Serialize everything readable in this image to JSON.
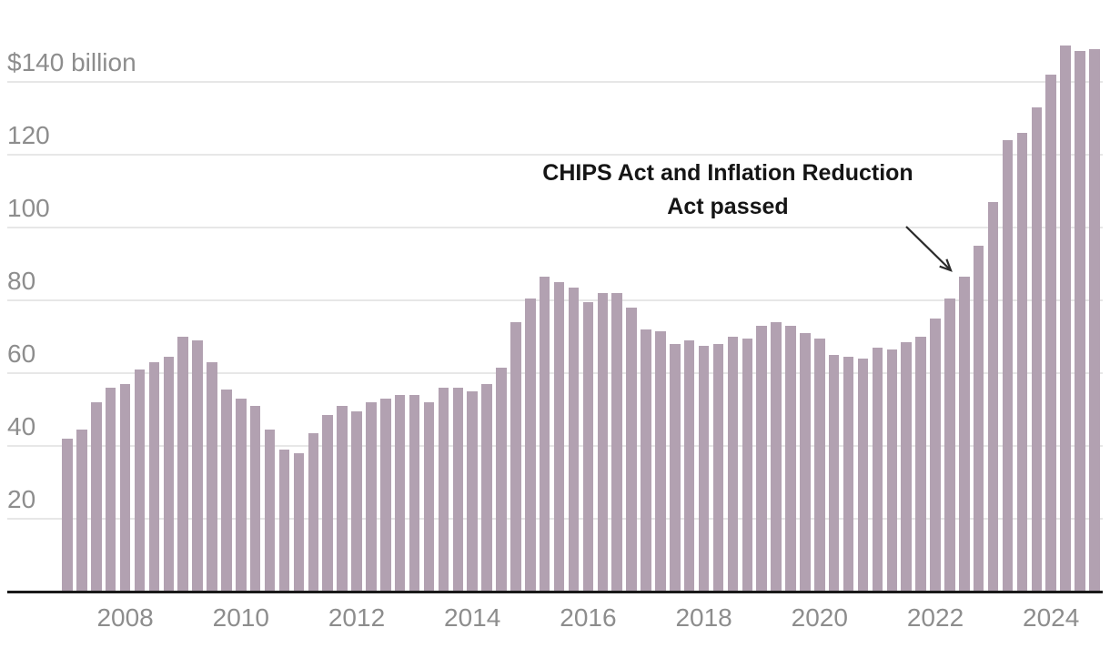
{
  "chart_data": {
    "type": "bar",
    "x_unit": "quarterly",
    "x_start": "2007 Q1",
    "x_end": "2024 Q4",
    "values": [
      42,
      44.5,
      52,
      56,
      57,
      61,
      63,
      64.5,
      70,
      69,
      63,
      55.5,
      53,
      51,
      44.5,
      39,
      38,
      43.5,
      48.5,
      51,
      49.5,
      52,
      53,
      54,
      54,
      52,
      56,
      56,
      55,
      57,
      61.5,
      74,
      80.5,
      86.5,
      85,
      83.5,
      79.5,
      82,
      82,
      78,
      72,
      71.5,
      68,
      69,
      67.5,
      68,
      70,
      69.5,
      73,
      74,
      73,
      71,
      69.5,
      65,
      64.5,
      64,
      67,
      66.5,
      68.5,
      70,
      75,
      80.5,
      86.5,
      95,
      107,
      124,
      126,
      133,
      142,
      150,
      148.5,
      149
    ],
    "ylim": [
      0,
      152
    ],
    "grid": "horizontal",
    "legend": "none",
    "y_ticks": [
      {
        "value": 140,
        "label": "$140 billion"
      },
      {
        "value": 120,
        "label": "120"
      },
      {
        "value": 100,
        "label": "100"
      },
      {
        "value": 80,
        "label": "80"
      },
      {
        "value": 60,
        "label": "60"
      },
      {
        "value": 40,
        "label": "40"
      },
      {
        "value": 20,
        "label": "20"
      }
    ],
    "x_ticks": [
      {
        "label": "2008",
        "quarter_index": 4
      },
      {
        "label": "2010",
        "quarter_index": 12
      },
      {
        "label": "2012",
        "quarter_index": 20
      },
      {
        "label": "2014",
        "quarter_index": 28
      },
      {
        "label": "2016",
        "quarter_index": 36
      },
      {
        "label": "2018",
        "quarter_index": 44
      },
      {
        "label": "2020",
        "quarter_index": 52
      },
      {
        "label": "2022",
        "quarter_index": 60
      },
      {
        "label": "2024",
        "quarter_index": 68
      }
    ],
    "annotation": {
      "line1": "CHIPS Act and Inflation Reduction",
      "line2": "Act passed"
    },
    "colors": {
      "bar": "#b2a1b1",
      "grid": "#e7e7e7",
      "axis": "#1a1a1a",
      "tick": "#8d8d8d",
      "note": "#151515",
      "arrow": "#2b2b2b"
    }
  }
}
